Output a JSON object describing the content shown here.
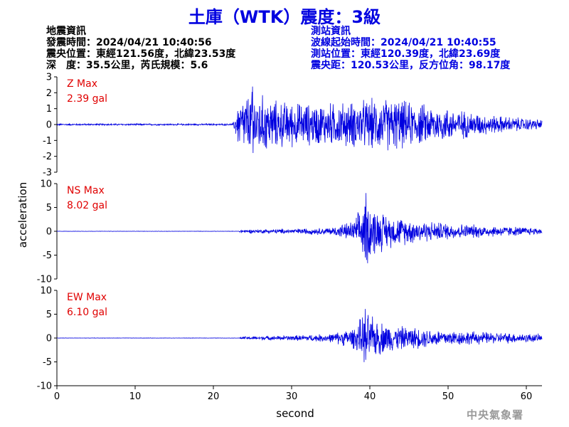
{
  "title": "土庫（WTK）震度：3級",
  "earthquake_info": {
    "heading": "地震資訊",
    "origin_time": "發震時間：2024/04/21 10:40:56",
    "epicenter": "震央位置：東經121.56度，北緯23.53度",
    "depth_magnitude": "深　度：35.5公里，芮氏規模：5.6"
  },
  "station_info": {
    "heading": "測站資訊",
    "wave_start": "波線起始時間：2024/04/21 10:40:55",
    "station_location": "測站位置：東經120.39度，北緯23.69度",
    "distance_azimuth": "震央距：120.53公里，反方位角：98.17度"
  },
  "footer": "中央氣象署",
  "colors": {
    "title": "#0000e0",
    "trace": "#0000e0",
    "peak_label": "#e00000",
    "axis": "#000000",
    "footer": "#9a9a9a"
  },
  "chart_data": {
    "type": "line",
    "xlabel": "second",
    "ylabel": "acceleration",
    "xlim": [
      0,
      62
    ],
    "x_ticks": [
      0,
      10,
      20,
      30,
      40,
      50,
      60
    ],
    "duration_s": 62,
    "panels": [
      {
        "name": "Z",
        "peak_label": "Z Max",
        "peak_value": "2.39 gal",
        "peak": 2.39,
        "ylim": [
          -3,
          3
        ],
        "y_ticks": [
          -3,
          -2,
          -1,
          0,
          1,
          2,
          3
        ],
        "envelope": [
          [
            0,
            0.06
          ],
          [
            22.5,
            0.06
          ],
          [
            23.2,
            1.7
          ],
          [
            25,
            2.39
          ],
          [
            28,
            1.7
          ],
          [
            32,
            1.5
          ],
          [
            37,
            1.6
          ],
          [
            40,
            1.8
          ],
          [
            43,
            1.9
          ],
          [
            45,
            1.6
          ],
          [
            50,
            1.2
          ],
          [
            55,
            0.7
          ],
          [
            60,
            0.45
          ],
          [
            62,
            0.35
          ]
        ]
      },
      {
        "name": "NS",
        "peak_label": "NS Max",
        "peak_value": "8.02 gal",
        "peak": 8.02,
        "ylim": [
          -10,
          10
        ],
        "y_ticks": [
          -10,
          -5,
          0,
          5,
          10
        ],
        "envelope": [
          [
            0,
            0.04
          ],
          [
            23.2,
            0.04
          ],
          [
            23.4,
            0.4
          ],
          [
            30,
            0.6
          ],
          [
            35,
            0.9
          ],
          [
            38,
            2.5
          ],
          [
            39.5,
            8.02
          ],
          [
            41,
            5
          ],
          [
            43,
            3.5
          ],
          [
            47,
            2.5
          ],
          [
            50,
            2.0
          ],
          [
            55,
            1.4
          ],
          [
            60,
            1.0
          ],
          [
            62,
            0.8
          ]
        ]
      },
      {
        "name": "EW",
        "peak_label": "EW Max",
        "peak_value": "6.10 gal",
        "peak": 6.1,
        "ylim": [
          -10,
          10
        ],
        "y_ticks": [
          -10,
          -5,
          0,
          5,
          10
        ],
        "envelope": [
          [
            0,
            0.04
          ],
          [
            23.3,
            0.04
          ],
          [
            23.6,
            0.35
          ],
          [
            30,
            0.6
          ],
          [
            35,
            1.0
          ],
          [
            38,
            2.5
          ],
          [
            39.4,
            6.1
          ],
          [
            41,
            4.2
          ],
          [
            43,
            3.0
          ],
          [
            47,
            2.3
          ],
          [
            50,
            1.9
          ],
          [
            55,
            1.4
          ],
          [
            60,
            1.1
          ],
          [
            62,
            0.9
          ]
        ]
      }
    ]
  }
}
